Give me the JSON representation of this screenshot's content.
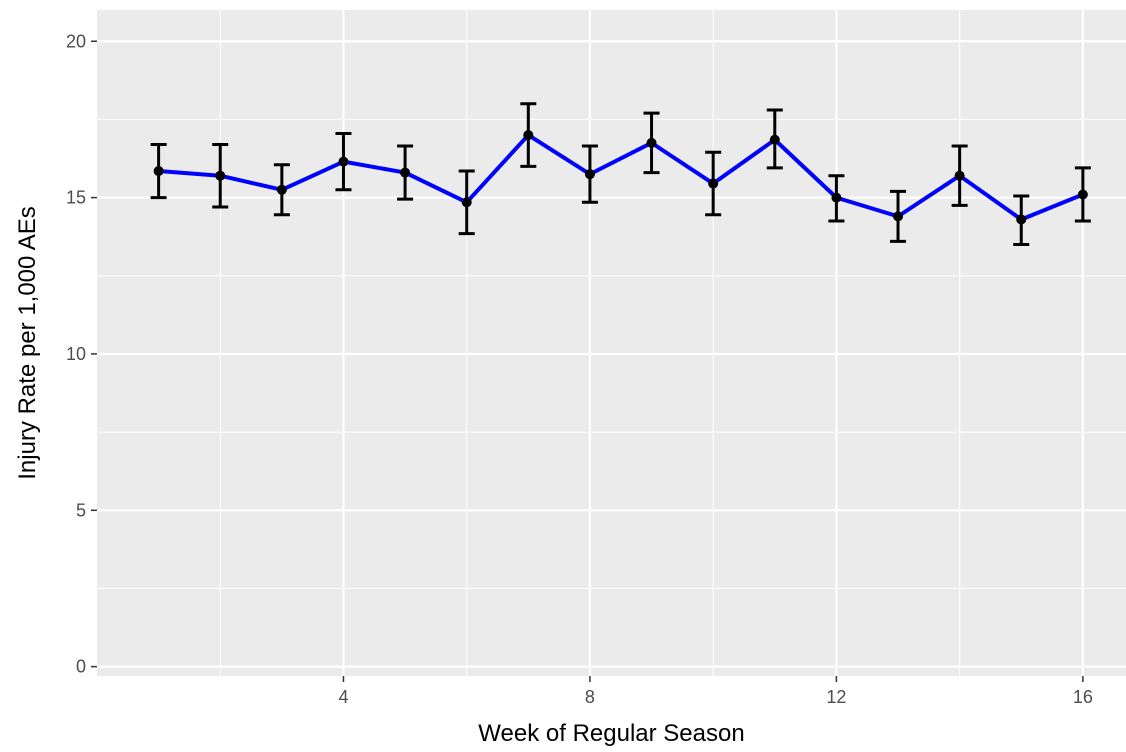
{
  "chart_data": {
    "type": "line",
    "title": "",
    "xlabel": "Week of Regular Season",
    "ylabel": "Injury Rate per 1,000 AEs",
    "xlim": [
      0,
      16.7
    ],
    "ylim": [
      -0.3,
      21.0
    ],
    "x_ticks": [
      4,
      8,
      12,
      16
    ],
    "x_tick_labels": [
      "4",
      "8",
      "12",
      "16"
    ],
    "y_ticks": [
      0,
      5,
      10,
      15,
      20
    ],
    "y_tick_labels": [
      "0",
      "5",
      "10",
      "15",
      "20"
    ],
    "grid": true,
    "legend": "none",
    "colors": {
      "line": "#0000ff",
      "points": "#000000",
      "error_bars": "#000000",
      "panel_background": "#ebebeb",
      "grid": "#ffffff"
    },
    "series": [
      {
        "x": [
          1,
          2,
          3,
          4,
          5,
          6,
          7,
          8,
          9,
          10,
          11,
          12,
          13,
          14,
          15,
          16
        ],
        "values": [
          15.85,
          15.7,
          15.25,
          16.15,
          15.8,
          14.85,
          17.0,
          15.75,
          16.75,
          15.45,
          16.85,
          15.0,
          14.4,
          15.7,
          14.3,
          15.1
        ],
        "lower": [
          15.0,
          14.7,
          14.45,
          15.25,
          14.95,
          13.85,
          16.0,
          14.85,
          15.8,
          14.45,
          15.95,
          14.25,
          13.6,
          14.75,
          13.5,
          14.25
        ],
        "upper": [
          16.7,
          16.7,
          16.05,
          17.05,
          16.65,
          15.85,
          18.0,
          16.65,
          17.7,
          16.45,
          17.8,
          15.7,
          15.2,
          16.65,
          15.05,
          15.95
        ]
      }
    ]
  }
}
